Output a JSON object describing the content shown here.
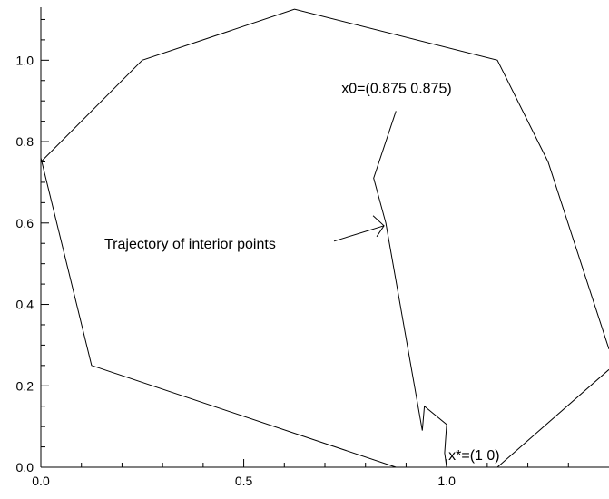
{
  "chart_data": {
    "type": "line",
    "title": "",
    "xlabel": "",
    "ylabel": "",
    "xlim": [
      0.0,
      1.4
    ],
    "ylim": [
      0.0,
      1.13
    ],
    "grid": false,
    "x_ticks": [
      {
        "value": 0.0,
        "label": "0.0"
      },
      {
        "value": 0.5,
        "label": "0.5"
      },
      {
        "value": 1.0,
        "label": "1.0"
      }
    ],
    "y_ticks": [
      {
        "value": 0.0,
        "label": "0.0"
      },
      {
        "value": 0.2,
        "label": "0.2"
      },
      {
        "value": 0.4,
        "label": "0.4"
      },
      {
        "value": 0.6,
        "label": "0.6"
      },
      {
        "value": 0.8,
        "label": "0.8"
      },
      {
        "value": 1.0,
        "label": "1.0"
      }
    ],
    "series": [
      {
        "points": [
          [
            0.0,
            0.75
          ],
          [
            0.25,
            1.0
          ],
          [
            0.625,
            1.125
          ],
          [
            1.125,
            1.0
          ],
          [
            1.25,
            0.75
          ],
          [
            1.4,
            0.29
          ]
        ]
      },
      {
        "points": [
          [
            0.0,
            0.76
          ],
          [
            0.125,
            0.25
          ],
          [
            0.875,
            0.0
          ]
        ]
      },
      {
        "points": [
          [
            1.125,
            0.0
          ],
          [
            1.4,
            0.24
          ]
        ]
      },
      {
        "points": [
          [
            0.875,
            0.875
          ],
          [
            0.82,
            0.71
          ],
          [
            0.85,
            0.6
          ],
          [
            0.94,
            0.09
          ],
          [
            0.945,
            0.15
          ],
          [
            1.0,
            0.105
          ],
          [
            0.995,
            0.035
          ],
          [
            1.0,
            0.0
          ]
        ]
      }
    ],
    "annotations": [
      {
        "text": "x0=(0.875  0.875)",
        "x": 0.875,
        "y": 0.875
      },
      {
        "text": "Trajectory of interior points",
        "x": 0.85,
        "y": 0.6
      },
      {
        "text": "x*=(1  0)",
        "x": 1.0,
        "y": 0.0
      }
    ]
  }
}
